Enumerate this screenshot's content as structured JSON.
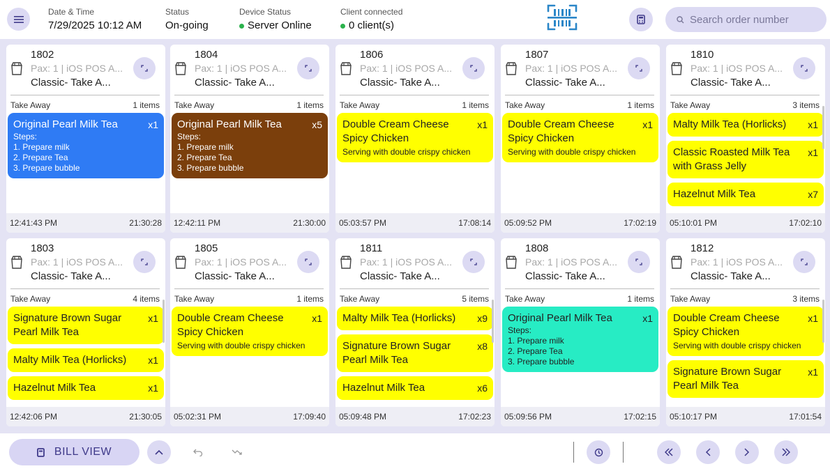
{
  "header": {
    "datetime_label": "Date & Time",
    "datetime_value": "7/29/2025 10:12 AM",
    "status_label": "Status",
    "status_value": "On-going",
    "device_label": "Device Status",
    "device_value": "Server Online",
    "client_label": "Client connected",
    "client_value": "0 client(s)",
    "search_placeholder": "Search order number",
    "status_dot_color": "#2bb24c"
  },
  "colors": {
    "blue": "#2f7bf4",
    "brown": "#7b3f0c",
    "yellow": "#ffff00",
    "teal": "#27ecc4",
    "accent": "#3f3a8a"
  },
  "orders": [
    {
      "number": "1802",
      "pax": "Pax: 1 | iOS POS A...",
      "type": "Classic- Take A...",
      "service": "Take Away",
      "count": "1 items",
      "start": "12:41:43 PM",
      "elapsed": "21:30:28",
      "items": [
        {
          "name": "Original Pearl Milk Tea",
          "qty": "x1",
          "color": "blue",
          "steps_label": "Steps:",
          "steps": [
            "1. Prepare milk",
            "2. Prepare Tea",
            "3. Prepare bubble"
          ]
        }
      ]
    },
    {
      "number": "1804",
      "pax": "Pax: 1 | iOS POS A...",
      "type": "Classic- Take A...",
      "service": "Take Away",
      "count": "1 items",
      "start": "12:42:11 PM",
      "elapsed": "21:30:00",
      "items": [
        {
          "name": "Original Pearl Milk Tea",
          "qty": "x5",
          "color": "brown",
          "steps_label": "Steps:",
          "steps": [
            "1. Prepare milk",
            "2. Prepare Tea",
            "3. Prepare bubble"
          ]
        }
      ]
    },
    {
      "number": "1806",
      "pax": "Pax: 1 | iOS POS A...",
      "type": "Classic- Take A...",
      "service": "Take Away",
      "count": "1 items",
      "start": "05:03:57 PM",
      "elapsed": "17:08:14",
      "items": [
        {
          "name": "Double Cream Cheese Spicy Chicken",
          "qty": "x1",
          "color": "yellow",
          "desc": "Serving with double crispy chicken"
        }
      ]
    },
    {
      "number": "1807",
      "pax": "Pax: 1 | iOS POS A...",
      "type": "Classic- Take A...",
      "service": "Take Away",
      "count": "1 items",
      "start": "05:09:52 PM",
      "elapsed": "17:02:19",
      "items": [
        {
          "name": "Double Cream Cheese Spicy Chicken",
          "qty": "x1",
          "color": "yellow",
          "desc": "Serving with double crispy chicken"
        }
      ]
    },
    {
      "number": "1810",
      "pax": "Pax: 1 | iOS POS A...",
      "type": "Classic- Take A...",
      "service": "Take Away",
      "count": "3 items",
      "start": "05:10:01 PM",
      "elapsed": "17:02:10",
      "scroll": true,
      "items": [
        {
          "name": "Malty Milk Tea (Horlicks)",
          "qty": "x1",
          "color": "yellow"
        },
        {
          "name": "Classic Roasted Milk Tea with Grass Jelly",
          "qty": "x1",
          "color": "yellow"
        },
        {
          "name": "Hazelnut Milk Tea",
          "qty": "x7",
          "color": "yellow"
        }
      ]
    },
    {
      "number": "1803",
      "pax": "Pax: 1 | iOS POS A...",
      "type": "Classic- Take A...",
      "service": "Take Away",
      "count": "4 items",
      "start": "12:42:06 PM",
      "elapsed": "21:30:05",
      "scroll": true,
      "items": [
        {
          "name": "Signature Brown Sugar Pearl Milk Tea",
          "qty": "x1",
          "color": "yellow"
        },
        {
          "name": "Malty Milk Tea (Horlicks)",
          "qty": "x1",
          "color": "yellow"
        },
        {
          "name": "Hazelnut Milk Tea",
          "qty": "x1",
          "color": "yellow"
        }
      ]
    },
    {
      "number": "1805",
      "pax": "Pax: 1 | iOS POS A...",
      "type": "Classic- Take A...",
      "service": "Take Away",
      "count": "1 items",
      "start": "05:02:31 PM",
      "elapsed": "17:09:40",
      "items": [
        {
          "name": "Double Cream Cheese Spicy Chicken",
          "qty": "x1",
          "color": "yellow",
          "desc": "Serving with double crispy chicken"
        }
      ]
    },
    {
      "number": "1811",
      "pax": "Pax: 1 | iOS POS A...",
      "type": "Classic- Take A...",
      "service": "Take Away",
      "count": "5 items",
      "start": "05:09:48 PM",
      "elapsed": "17:02:23",
      "scroll": true,
      "items": [
        {
          "name": "Malty Milk Tea (Horlicks)",
          "qty": "x9",
          "color": "yellow"
        },
        {
          "name": "Signature Brown Sugar Pearl Milk Tea",
          "qty": "x8",
          "color": "yellow"
        },
        {
          "name": "Hazelnut Milk Tea",
          "qty": "x6",
          "color": "yellow"
        }
      ]
    },
    {
      "number": "1808",
      "pax": "Pax: 1 | iOS POS A...",
      "type": "Classic- Take A...",
      "service": "Take Away",
      "count": "1 items",
      "start": "05:09:56 PM",
      "elapsed": "17:02:15",
      "items": [
        {
          "name": "Original Pearl Milk Tea",
          "qty": "x1",
          "color": "teal",
          "steps_label": "Steps:",
          "steps": [
            "1. Prepare milk",
            "2. Prepare Tea",
            "3. Prepare bubble"
          ]
        }
      ]
    },
    {
      "number": "1812",
      "pax": "Pax: 1 | iOS POS A...",
      "type": "Classic- Take A...",
      "service": "Take Away",
      "count": "3 items",
      "start": "05:10:17 PM",
      "elapsed": "17:01:54",
      "scroll": true,
      "items": [
        {
          "name": "Double Cream Cheese Spicy Chicken",
          "qty": "x1",
          "color": "yellow",
          "desc": "Serving with double crispy chicken"
        },
        {
          "name": "Signature Brown Sugar Pearl Milk Tea",
          "qty": "x1",
          "color": "yellow"
        }
      ]
    }
  ],
  "footer": {
    "bill_view_label": "BILL VIEW",
    "icons": [
      "receipt-icon",
      "chevron-up-icon",
      "undo-icon",
      "redo-icon",
      "history-icon",
      "first-page-icon",
      "prev-page-icon",
      "next-page-icon",
      "last-page-icon"
    ]
  }
}
